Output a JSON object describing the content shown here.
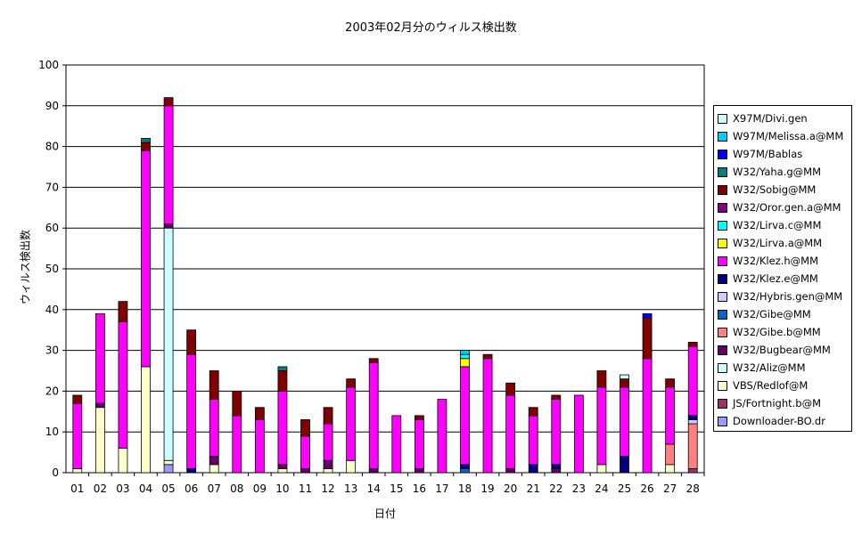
{
  "chart_data": {
    "type": "bar",
    "stacked": true,
    "title": "2003年02月分のウィルス検出数",
    "xlabel": "日付",
    "ylabel": "ウィルス検出数",
    "ylim": [
      0,
      100
    ],
    "yticks": [
      0,
      10,
      20,
      30,
      40,
      50,
      60,
      70,
      80,
      90,
      100
    ],
    "grid": true,
    "legend_position": "right",
    "categories": [
      "01",
      "02",
      "03",
      "04",
      "05",
      "06",
      "07",
      "08",
      "09",
      "10",
      "11",
      "12",
      "13",
      "14",
      "15",
      "16",
      "17",
      "18",
      "19",
      "20",
      "21",
      "22",
      "23",
      "24",
      "25",
      "26",
      "27",
      "28"
    ],
    "series": [
      {
        "name": "Downloader-BO.dr",
        "color": "#9999ff",
        "values": [
          0,
          0,
          0,
          0,
          2,
          0,
          0,
          0,
          0,
          0,
          0,
          0,
          0,
          0,
          0,
          0,
          0,
          0,
          0,
          0,
          0,
          0,
          0,
          0,
          0,
          0,
          0,
          0
        ]
      },
      {
        "name": "JS/Fortnight.b@M",
        "color": "#993366",
        "values": [
          0,
          0,
          0,
          0,
          0,
          0,
          0,
          0,
          0,
          0,
          0,
          0,
          0,
          0,
          0,
          0,
          0,
          0,
          0,
          0,
          0,
          0,
          0,
          0,
          0,
          0,
          0,
          1
        ]
      },
      {
        "name": "VBS/Redlof@M",
        "color": "#ffffcc",
        "values": [
          1,
          16,
          6,
          26,
          1,
          0,
          2,
          0,
          0,
          1,
          0,
          1,
          3,
          0,
          0,
          0,
          0,
          0,
          0,
          0,
          0,
          0,
          0,
          2,
          0,
          0,
          2,
          0
        ]
      },
      {
        "name": "W32/Aliz@MM",
        "color": "#ccffff",
        "values": [
          0,
          0,
          0,
          0,
          57,
          0,
          0,
          0,
          0,
          0,
          0,
          0,
          0,
          0,
          0,
          0,
          0,
          0,
          0,
          0,
          0,
          0,
          0,
          0,
          0,
          0,
          0,
          0
        ]
      },
      {
        "name": "W32/Bugbear@MM",
        "color": "#660066",
        "values": [
          0,
          1,
          0,
          0,
          1,
          0,
          2,
          0,
          0,
          1,
          1,
          2,
          0,
          1,
          0,
          1,
          0,
          0,
          0,
          1,
          0,
          1,
          0,
          0,
          0,
          0,
          0,
          0
        ]
      },
      {
        "name": "W32/Gibe.b@MM",
        "color": "#ff8080",
        "values": [
          0,
          0,
          0,
          0,
          0,
          0,
          0,
          0,
          0,
          0,
          0,
          0,
          0,
          0,
          0,
          0,
          0,
          0,
          0,
          0,
          0,
          0,
          0,
          0,
          0,
          0,
          5,
          11
        ]
      },
      {
        "name": "W32/Gibe@MM",
        "color": "#0066cc",
        "values": [
          0,
          0,
          0,
          0,
          0,
          0,
          0,
          0,
          0,
          0,
          0,
          0,
          0,
          0,
          0,
          0,
          0,
          1,
          0,
          0,
          0,
          0,
          0,
          0,
          0,
          0,
          0,
          0
        ]
      },
      {
        "name": "W32/Hybris.gen@MM",
        "color": "#ccccff",
        "values": [
          0,
          0,
          0,
          0,
          0,
          0,
          0,
          0,
          0,
          0,
          0,
          0,
          0,
          0,
          0,
          0,
          0,
          0,
          0,
          0,
          0,
          0,
          0,
          0,
          0,
          0,
          0,
          1
        ]
      },
      {
        "name": "W32/Klez.e@MM",
        "color": "#000080",
        "values": [
          0,
          0,
          0,
          0,
          0,
          1,
          0,
          0,
          0,
          0,
          0,
          0,
          0,
          0,
          0,
          0,
          0,
          1,
          0,
          0,
          2,
          1,
          0,
          0,
          4,
          0,
          0,
          1
        ]
      },
      {
        "name": "W32/Klez.h@MM",
        "color": "#ff00ff",
        "values": [
          16,
          22,
          31,
          53,
          29,
          28,
          14,
          14,
          13,
          18,
          8,
          9,
          18,
          26,
          14,
          12,
          18,
          24,
          28,
          18,
          12,
          16,
          19,
          19,
          17,
          28,
          14,
          17
        ]
      },
      {
        "name": "W32/Lirva.a@MM",
        "color": "#ffff00",
        "values": [
          0,
          0,
          0,
          0,
          0,
          0,
          0,
          0,
          0,
          0,
          0,
          0,
          0,
          0,
          0,
          0,
          0,
          2,
          0,
          0,
          0,
          0,
          0,
          0,
          0,
          0,
          0,
          0
        ]
      },
      {
        "name": "W32/Lirva.c@MM",
        "color": "#00ffff",
        "values": [
          0,
          0,
          0,
          0,
          0,
          0,
          0,
          0,
          0,
          0,
          0,
          0,
          0,
          0,
          0,
          0,
          0,
          1,
          0,
          0,
          0,
          0,
          0,
          0,
          0,
          0,
          0,
          0
        ]
      },
      {
        "name": "W32/Oror.gen.a@MM",
        "color": "#800080",
        "values": [
          0,
          0,
          0,
          0,
          0,
          0,
          0,
          0,
          0,
          0,
          0,
          0,
          0,
          0,
          0,
          0,
          0,
          0,
          0,
          0,
          0,
          0,
          0,
          0,
          0,
          0,
          0,
          0
        ]
      },
      {
        "name": "W32/Sobig@MM",
        "color": "#800000",
        "values": [
          2,
          0,
          5,
          2,
          2,
          6,
          7,
          6,
          3,
          5,
          4,
          4,
          2,
          1,
          0,
          1,
          0,
          0,
          1,
          3,
          2,
          1,
          0,
          4,
          2,
          10,
          2,
          1
        ]
      },
      {
        "name": "W32/Yaha.g@MM",
        "color": "#008080",
        "values": [
          0,
          0,
          0,
          1,
          0,
          0,
          0,
          0,
          0,
          1,
          0,
          0,
          0,
          0,
          0,
          0,
          0,
          0,
          0,
          0,
          0,
          0,
          0,
          0,
          0,
          0,
          0,
          0
        ]
      },
      {
        "name": "W97M/Bablas",
        "color": "#0000ff",
        "values": [
          0,
          0,
          0,
          0,
          0,
          0,
          0,
          0,
          0,
          0,
          0,
          0,
          0,
          0,
          0,
          0,
          0,
          0,
          0,
          0,
          0,
          0,
          0,
          0,
          0,
          1,
          0,
          0
        ]
      },
      {
        "name": "W97M/Melissa.a@MM",
        "color": "#00ccff",
        "values": [
          0,
          0,
          0,
          0,
          0,
          0,
          0,
          0,
          0,
          0,
          0,
          0,
          0,
          0,
          0,
          0,
          0,
          1,
          0,
          0,
          0,
          0,
          0,
          0,
          0,
          0,
          0,
          0
        ]
      },
      {
        "name": "X97M/Divi.gen",
        "color": "#ccffff",
        "values": [
          0,
          0,
          0,
          0,
          0,
          0,
          0,
          0,
          0,
          0,
          0,
          0,
          0,
          0,
          0,
          0,
          0,
          0,
          0,
          0,
          0,
          0,
          0,
          0,
          1,
          0,
          0,
          0
        ]
      }
    ]
  }
}
